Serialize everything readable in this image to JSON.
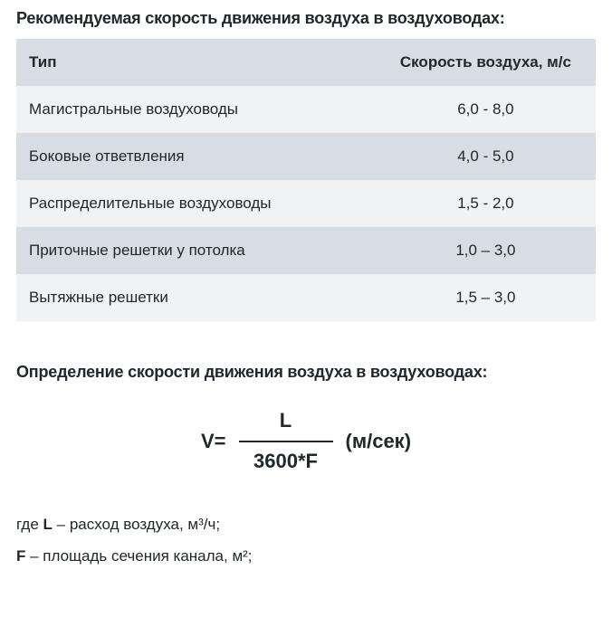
{
  "title": "Рекомендуемая скорость движения воздуха в воздуховодах:",
  "table": {
    "header": {
      "type": "Тип",
      "speed": "Скорость воздуха, м/с"
    },
    "rows": [
      {
        "type": "Магистральные воздуховоды",
        "speed": "6,0 - 8,0"
      },
      {
        "type": "Боковые ответвления",
        "speed": "4,0 - 5,0"
      },
      {
        "type": "Распределительные воздуховоды",
        "speed": "1,5 - 2,0"
      },
      {
        "type": "Приточные решетки у потолка",
        "speed": "1,0 – 3,0"
      },
      {
        "type": "Вытяжные решетки",
        "speed": "1,5 – 3,0"
      }
    ],
    "colors": {
      "dark": "#d7dde2",
      "light": "#f0f2f4"
    }
  },
  "section2_title": "Определение скорости движения воздуха в воздуховодах:",
  "formula": {
    "lhs": "V=",
    "numerator": "L",
    "denominator": "3600*F",
    "unit": "(м/сек)"
  },
  "legend": {
    "line1_prefix": "где ",
    "line1_var": "L",
    "line1_rest": " – расход воздуха, м³/ч;",
    "line2_var": "F",
    "line2_rest": " – площадь сечения канала, м²;"
  },
  "typography": {
    "title_fontsize": 18,
    "cell_fontsize": 17,
    "formula_fontsize": 22,
    "legend_fontsize": 17,
    "text_color": "#22272b",
    "background": "#ffffff",
    "font_family": "Arial"
  }
}
